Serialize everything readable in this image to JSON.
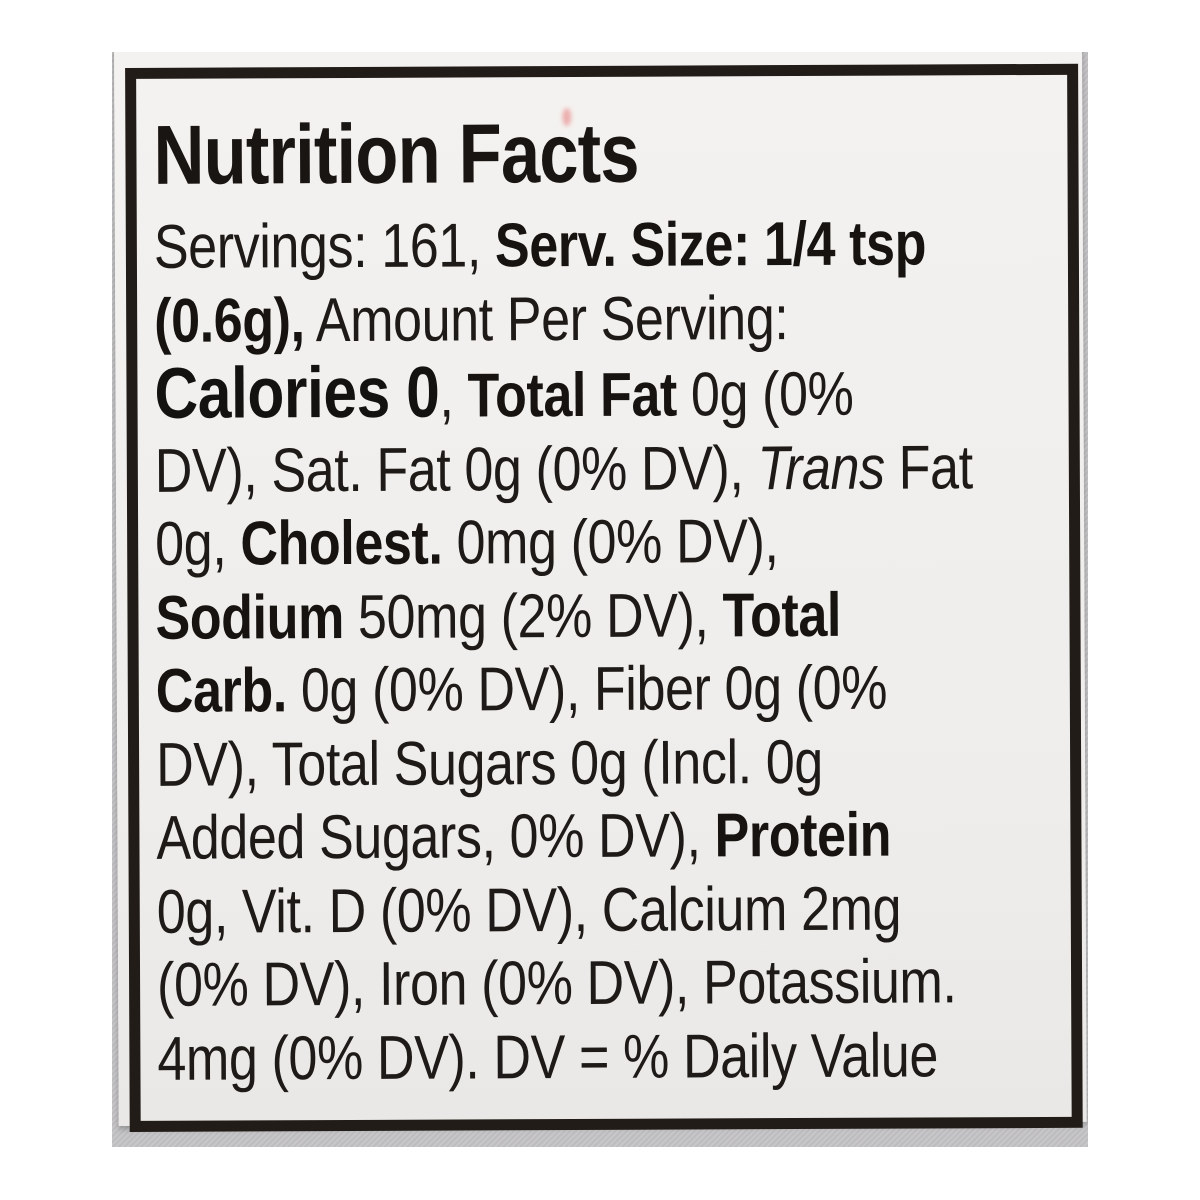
{
  "label": {
    "title": "Nutrition Facts",
    "lines": [
      {
        "segments": [
          {
            "text": "Servings: 161, "
          },
          {
            "text": "Serv. Size: 1/4 tsp",
            "bold": true
          }
        ]
      },
      {
        "segments": [
          {
            "text": "(0.6g),",
            "bold": true
          },
          {
            "text": " Amount Per Serving:"
          }
        ]
      },
      {
        "segments": [
          {
            "text": "Calories 0",
            "bold": true,
            "size": "xl"
          },
          {
            "text": ", "
          },
          {
            "text": "Total Fat",
            "bold": true
          },
          {
            "text": " 0g (0%"
          }
        ]
      },
      {
        "segments": [
          {
            "text": "DV), Sat. Fat 0g (0% DV), "
          },
          {
            "text": "Trans",
            "italic": true
          },
          {
            "text": " Fat"
          }
        ]
      },
      {
        "segments": [
          {
            "text": "0g, "
          },
          {
            "text": "Cholest.",
            "bold": true
          },
          {
            "text": " 0mg (0% DV),"
          }
        ]
      },
      {
        "segments": [
          {
            "text": "Sodium",
            "bold": true
          },
          {
            "text": " 50mg (2% DV), "
          },
          {
            "text": "Total",
            "bold": true
          }
        ]
      },
      {
        "segments": [
          {
            "text": "Carb.",
            "bold": true
          },
          {
            "text": " 0g (0% DV), Fiber 0g (0%"
          }
        ]
      },
      {
        "segments": [
          {
            "text": "DV), Total Sugars 0g (Incl. 0g"
          }
        ]
      },
      {
        "segments": [
          {
            "text": "Added Sugars, 0% DV), "
          },
          {
            "text": "Protein",
            "bold": true
          }
        ]
      },
      {
        "segments": [
          {
            "text": "0g, Vit. D (0% DV), Calcium 2mg"
          }
        ]
      },
      {
        "segments": [
          {
            "text": "(0% DV), Iron (0% DV), Potassium."
          }
        ]
      },
      {
        "segments": [
          {
            "text": "4mg (0% DV). DV = % Daily Value"
          }
        ]
      }
    ]
  },
  "colors": {
    "page_background": "#ffffff",
    "backdrop_gray": "#c3c2c4",
    "paper": "#f1efed",
    "border_black": "#211c17",
    "text": "#1b1815"
  }
}
